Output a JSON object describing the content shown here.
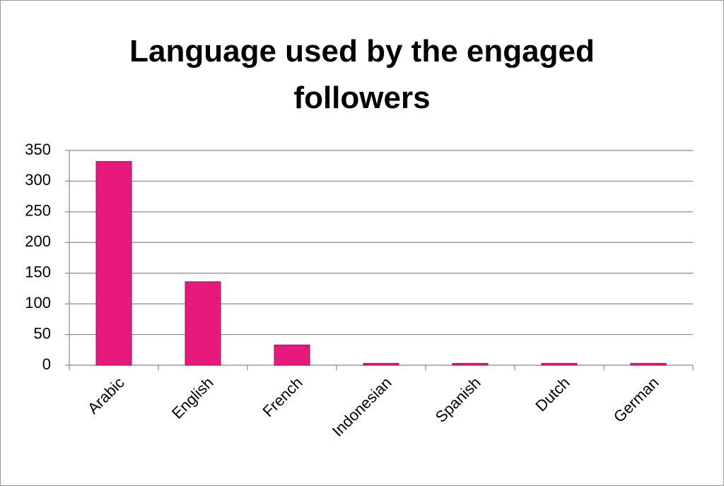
{
  "chart_data": {
    "type": "bar",
    "title": "Language used by the engaged followers",
    "categories": [
      "Arabic",
      "English",
      "French",
      "Indonesian",
      "Spanish",
      "Dutch",
      "German"
    ],
    "values": [
      332,
      136,
      33,
      3,
      3,
      3,
      3
    ],
    "color": "#e6197c",
    "ylim": [
      0,
      350
    ],
    "yticks": [
      0,
      50,
      100,
      150,
      200,
      250,
      300,
      350
    ],
    "grid": true
  }
}
